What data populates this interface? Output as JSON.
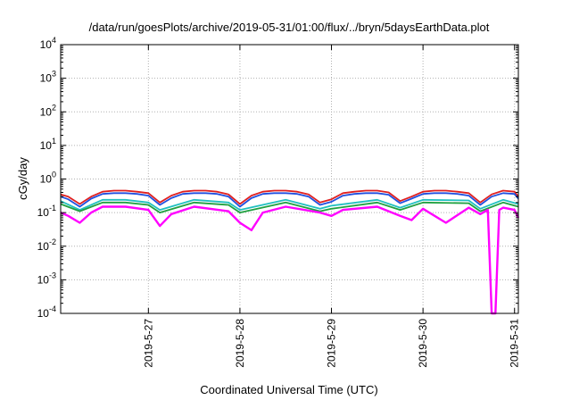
{
  "chart_data": {
    "type": "line",
    "title": "/data/run/goesPlots/archive/2019-05-31/01:00/flux/../bryn/5daysEarthData.plot",
    "xlabel": "Coordinated Universal Time (UTC)",
    "ylabel": "cGy/day",
    "y_scale": "log",
    "ylim": [
      0.0001,
      10000
    ],
    "y_ticks": [
      {
        "base": "10",
        "exp": "-4"
      },
      {
        "base": "10",
        "exp": "-3"
      },
      {
        "base": "10",
        "exp": "-2"
      },
      {
        "base": "10",
        "exp": "-1"
      },
      {
        "base": "10",
        "exp": "0"
      },
      {
        "base": "10",
        "exp": "1"
      },
      {
        "base": "10",
        "exp": "2"
      },
      {
        "base": "10",
        "exp": "3"
      },
      {
        "base": "10",
        "exp": "4"
      }
    ],
    "xlim": [
      "2019-05-26 01:00",
      "2019-05-31 01:00"
    ],
    "x_ticks": [
      "2019-5-27",
      "2019-5-28",
      "2019-5-29",
      "2019-5-30",
      "2019-5-31"
    ],
    "grid": true,
    "legend": "none",
    "series": [
      {
        "color": "#e02020",
        "x": [
          "2019-05-26 01:00",
          "2019-05-26 03:00",
          "2019-05-26 06:00",
          "2019-05-26 09:00",
          "2019-05-26 12:00",
          "2019-05-26 15:00",
          "2019-05-26 18:00",
          "2019-05-26 21:00",
          "2019-05-27 00:00",
          "2019-05-27 03:00",
          "2019-05-27 06:00",
          "2019-05-27 09:00",
          "2019-05-27 12:00",
          "2019-05-27 15:00",
          "2019-05-27 18:00",
          "2019-05-27 21:00",
          "2019-05-28 00:00",
          "2019-05-28 03:00",
          "2019-05-28 06:00",
          "2019-05-28 09:00",
          "2019-05-28 12:00",
          "2019-05-28 15:00",
          "2019-05-28 18:00",
          "2019-05-28 21:00",
          "2019-05-29 00:00",
          "2019-05-29 03:00",
          "2019-05-29 06:00",
          "2019-05-29 09:00",
          "2019-05-29 12:00",
          "2019-05-29 15:00",
          "2019-05-29 18:00",
          "2019-05-29 21:00",
          "2019-05-30 00:00",
          "2019-05-30 03:00",
          "2019-05-30 06:00",
          "2019-05-30 09:00",
          "2019-05-30 12:00",
          "2019-05-30 15:00",
          "2019-05-30 18:00",
          "2019-05-30 21:00",
          "2019-05-31 00:00",
          "2019-05-31 01:00"
        ],
        "values": [
          0.35,
          0.3,
          0.18,
          0.3,
          0.42,
          0.45,
          0.45,
          0.42,
          0.38,
          0.2,
          0.32,
          0.42,
          0.45,
          0.45,
          0.42,
          0.35,
          0.18,
          0.32,
          0.42,
          0.45,
          0.45,
          0.42,
          0.35,
          0.2,
          0.25,
          0.38,
          0.42,
          0.45,
          0.45,
          0.4,
          0.22,
          0.3,
          0.42,
          0.45,
          0.45,
          0.42,
          0.38,
          0.2,
          0.35,
          0.45,
          0.42,
          0.3
        ]
      },
      {
        "color": "#2050e0",
        "x": [
          "2019-05-26 01:00",
          "2019-05-26 03:00",
          "2019-05-26 06:00",
          "2019-05-26 09:00",
          "2019-05-26 12:00",
          "2019-05-26 15:00",
          "2019-05-26 18:00",
          "2019-05-26 21:00",
          "2019-05-27 00:00",
          "2019-05-27 03:00",
          "2019-05-27 06:00",
          "2019-05-27 09:00",
          "2019-05-27 12:00",
          "2019-05-27 15:00",
          "2019-05-27 18:00",
          "2019-05-27 21:00",
          "2019-05-28 00:00",
          "2019-05-28 03:00",
          "2019-05-28 06:00",
          "2019-05-28 09:00",
          "2019-05-28 12:00",
          "2019-05-28 15:00",
          "2019-05-28 18:00",
          "2019-05-28 21:00",
          "2019-05-29 00:00",
          "2019-05-29 03:00",
          "2019-05-29 06:00",
          "2019-05-29 09:00",
          "2019-05-29 12:00",
          "2019-05-29 15:00",
          "2019-05-29 18:00",
          "2019-05-29 21:00",
          "2019-05-30 00:00",
          "2019-05-30 03:00",
          "2019-05-30 06:00",
          "2019-05-30 09:00",
          "2019-05-30 12:00",
          "2019-05-30 15:00",
          "2019-05-30 18:00",
          "2019-05-30 21:00",
          "2019-05-31 00:00",
          "2019-05-31 01:00"
        ],
        "values": [
          0.3,
          0.25,
          0.15,
          0.26,
          0.36,
          0.38,
          0.38,
          0.36,
          0.32,
          0.17,
          0.27,
          0.36,
          0.38,
          0.38,
          0.36,
          0.3,
          0.15,
          0.27,
          0.36,
          0.38,
          0.38,
          0.36,
          0.3,
          0.17,
          0.21,
          0.32,
          0.36,
          0.38,
          0.38,
          0.34,
          0.19,
          0.26,
          0.36,
          0.38,
          0.38,
          0.36,
          0.32,
          0.17,
          0.3,
          0.38,
          0.36,
          0.26
        ]
      },
      {
        "color": "#20c0c0",
        "x": [
          "2019-05-26 01:00",
          "2019-05-26 06:00",
          "2019-05-26 12:00",
          "2019-05-26 18:00",
          "2019-05-27 00:00",
          "2019-05-27 03:00",
          "2019-05-27 12:00",
          "2019-05-27 21:00",
          "2019-05-28 00:00",
          "2019-05-28 12:00",
          "2019-05-28 21:00",
          "2019-05-29 00:00",
          "2019-05-29 12:00",
          "2019-05-29 18:00",
          "2019-05-30 00:00",
          "2019-05-30 12:00",
          "2019-05-30 15:00",
          "2019-05-30 21:00",
          "2019-05-31 01:00"
        ],
        "values": [
          0.22,
          0.12,
          0.24,
          0.24,
          0.2,
          0.12,
          0.24,
          0.2,
          0.12,
          0.24,
          0.13,
          0.16,
          0.24,
          0.14,
          0.24,
          0.23,
          0.13,
          0.24,
          0.18
        ]
      },
      {
        "color": "#20a040",
        "x": [
          "2019-05-26 01:00",
          "2019-05-26 06:00",
          "2019-05-26 12:00",
          "2019-05-26 18:00",
          "2019-05-27 00:00",
          "2019-05-27 03:00",
          "2019-05-27 12:00",
          "2019-05-27 21:00",
          "2019-05-28 00:00",
          "2019-05-28 12:00",
          "2019-05-28 21:00",
          "2019-05-29 00:00",
          "2019-05-29 12:00",
          "2019-05-29 18:00",
          "2019-05-30 00:00",
          "2019-05-30 12:00",
          "2019-05-30 15:00",
          "2019-05-30 21:00",
          "2019-05-31 01:00"
        ],
        "values": [
          0.18,
          0.11,
          0.2,
          0.2,
          0.17,
          0.1,
          0.2,
          0.17,
          0.1,
          0.2,
          0.11,
          0.13,
          0.2,
          0.12,
          0.2,
          0.19,
          0.11,
          0.2,
          0.15
        ]
      },
      {
        "color": "#ff00ff",
        "x": [
          "2019-05-26 01:00",
          "2019-05-26 03:00",
          "2019-05-26 06:00",
          "2019-05-26 09:00",
          "2019-05-26 12:00",
          "2019-05-26 18:00",
          "2019-05-27 00:00",
          "2019-05-27 03:00",
          "2019-05-27 06:00",
          "2019-05-27 12:00",
          "2019-05-27 21:00",
          "2019-05-28 00:00",
          "2019-05-28 03:00",
          "2019-05-28 06:00",
          "2019-05-28 12:00",
          "2019-05-28 21:00",
          "2019-05-29 00:00",
          "2019-05-29 03:00",
          "2019-05-29 12:00",
          "2019-05-29 18:00",
          "2019-05-29 21:00",
          "2019-05-30 00:00",
          "2019-05-30 06:00",
          "2019-05-30 12:00",
          "2019-05-30 15:00",
          "2019-05-30 17:00",
          "2019-05-30 18:00",
          "2019-05-30 19:00",
          "2019-05-30 20:00",
          "2019-05-30 21:00",
          "2019-05-31 00:00",
          "2019-05-31 01:00"
        ],
        "values": [
          0.1,
          0.08,
          0.05,
          0.1,
          0.15,
          0.15,
          0.12,
          0.04,
          0.09,
          0.15,
          0.11,
          0.05,
          0.03,
          0.1,
          0.15,
          0.1,
          0.08,
          0.12,
          0.15,
          0.08,
          0.06,
          0.13,
          0.05,
          0.14,
          0.09,
          0.12,
          0.0001,
          0.0001,
          0.12,
          0.14,
          0.12,
          0.07
        ]
      }
    ]
  }
}
